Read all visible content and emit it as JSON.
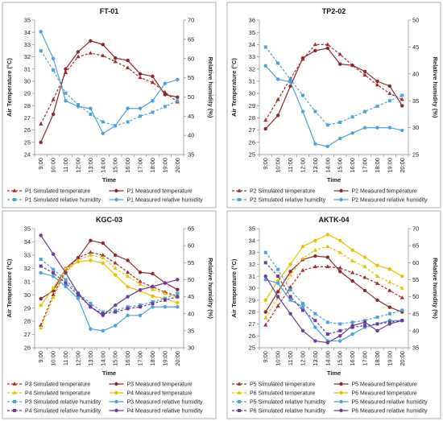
{
  "chart_data": [
    {
      "type": "line",
      "title": "FT-01",
      "x": [
        "9:00",
        "10:00",
        "11:00",
        "12:00",
        "13:00",
        "14:00",
        "15:00",
        "16:00",
        "17:00",
        "18:00",
        "19:00",
        "20:00"
      ],
      "xlabel": "Time",
      "ylabel": "Air Temperature (°C)",
      "y2label": "Relative humidity (%)",
      "ylim": [
        24,
        35
      ],
      "y2lim": [
        35,
        70
      ],
      "yticks": [
        24,
        25,
        26,
        27,
        28,
        29,
        30,
        31,
        32,
        33,
        34,
        35
      ],
      "y2ticks": [
        35,
        40,
        45,
        50,
        55,
        60,
        65,
        70
      ],
      "series": [
        {
          "name": "P1 Simulated temperature",
          "axis": "left",
          "color": "#A52A2A",
          "dash": true,
          "marker": "triangle",
          "values": [
            26.5,
            28.5,
            30.7,
            32.0,
            32.3,
            32.1,
            31.6,
            31.1,
            30.3,
            29.9,
            29.1,
            28.3
          ]
        },
        {
          "name": "P1 Measured temperature",
          "axis": "left",
          "color": "#8B2A2A",
          "dash": false,
          "marker": "circle",
          "values": [
            25.0,
            27.3,
            31.0,
            32.4,
            33.3,
            33.0,
            31.9,
            31.7,
            30.6,
            30.4,
            28.9,
            28.7
          ]
        },
        {
          "name": "P1 Simulated relative humidity",
          "axis": "right",
          "color": "#4BA3D9",
          "dash": true,
          "marker": "square",
          "values": [
            62,
            57,
            51,
            48,
            45.5,
            43.5,
            42.5,
            43.5,
            45,
            46,
            47.5,
            49
          ]
        },
        {
          "name": "P1 Measured relative humidity",
          "axis": "right",
          "color": "#4BA3D9",
          "dash": false,
          "marker": "circle",
          "values": [
            67,
            60,
            49,
            47.5,
            47,
            40.5,
            42.5,
            47,
            47,
            49,
            53.5,
            54.5
          ]
        }
      ],
      "legend_position": "bottom"
    },
    {
      "type": "line",
      "title": "TP2-02",
      "x": [
        "9:00",
        "10:00",
        "11:00",
        "12:00",
        "13:00",
        "14:00",
        "15:00",
        "16:00",
        "17:00",
        "18:00",
        "19:00",
        "20:00"
      ],
      "xlabel": "Time",
      "ylabel": "Air Temperature (°C)",
      "y2label": "Relative humidity (%)",
      "ylim": [
        25,
        36
      ],
      "y2lim": [
        25,
        50
      ],
      "yticks": [
        25,
        26,
        27,
        28,
        29,
        30,
        31,
        32,
        33,
        34,
        35,
        36
      ],
      "y2ticks": [
        25,
        30,
        35,
        40,
        45,
        50
      ],
      "series": [
        {
          "name": "P2 Simulated temperature",
          "axis": "left",
          "color": "#A52A2A",
          "dash": true,
          "marker": "triangle",
          "values": [
            27.8,
            29.5,
            31.2,
            32.8,
            34.0,
            34.0,
            33.2,
            32.3,
            31.5,
            30.7,
            30.0,
            29.5
          ]
        },
        {
          "name": "P2 Measured temperature",
          "axis": "left",
          "color": "#8B2A2A",
          "dash": false,
          "marker": "circle",
          "values": [
            27.1,
            28.2,
            30.6,
            32.9,
            33.5,
            33.7,
            32.4,
            32.3,
            31.8,
            31.0,
            30.6,
            29.0
          ]
        },
        {
          "name": "P2 Simulated relative humidity",
          "axis": "right",
          "color": "#4BA3D9",
          "dash": true,
          "marker": "square",
          "values": [
            45,
            42,
            39,
            36,
            33,
            30.5,
            31,
            32,
            33,
            34,
            35,
            36
          ]
        },
        {
          "name": "P2 Measured relative humidity",
          "axis": "right",
          "color": "#4BA3D9",
          "dash": false,
          "marker": "circle",
          "values": [
            41.5,
            39,
            38.5,
            33,
            27,
            26.5,
            28,
            29,
            30,
            30,
            30,
            29.5
          ]
        }
      ],
      "legend_position": "bottom"
    },
    {
      "type": "line",
      "title": "KGC-03",
      "x": [
        "9:00",
        "10:00",
        "11:00",
        "12:00",
        "13:00",
        "14:00",
        "15:00",
        "16:00",
        "17:00",
        "18:00",
        "19:00",
        "20:00"
      ],
      "xlabel": "Time",
      "ylabel": "Air Temperature (°C)",
      "y2label": "Relative humidity (%)",
      "ylim": [
        26,
        35
      ],
      "y2lim": [
        30,
        65
      ],
      "yticks": [
        26,
        27,
        28,
        29,
        30,
        31,
        32,
        33,
        34,
        35
      ],
      "y2ticks": [
        30,
        35,
        40,
        45,
        50,
        55,
        60,
        65
      ],
      "series": [
        {
          "name": "P3 Simulated temperature",
          "axis": "left",
          "color": "#A52A2A",
          "dash": true,
          "marker": "triangle",
          "values": [
            27.7,
            30.0,
            31.8,
            32.8,
            33.2,
            33.0,
            32.4,
            31.7,
            31.0,
            30.6,
            30.2,
            29.9
          ]
        },
        {
          "name": "P3 Measured temperature",
          "axis": "left",
          "color": "#8B2A2A",
          "dash": false,
          "marker": "circle",
          "values": [
            29.7,
            30.3,
            32.0,
            32.8,
            34.1,
            33.9,
            33.0,
            32.6,
            31.7,
            31.6,
            30.9,
            30.4
          ]
        },
        {
          "name": "P4 Simulated temperature",
          "axis": "left",
          "color": "#E8C100",
          "dash": true,
          "marker": "triangle",
          "values": [
            27.5,
            29.8,
            31.7,
            32.6,
            33.0,
            32.8,
            32.0,
            31.4,
            30.8,
            30.4,
            30.1,
            29.8
          ]
        },
        {
          "name": "P4 Measured temperature",
          "axis": "left",
          "color": "#E8C100",
          "dash": false,
          "marker": "circle",
          "values": [
            29.2,
            30.5,
            32.0,
            32.5,
            32.6,
            32.4,
            31.5,
            30.6,
            30.3,
            29.9,
            29.7,
            29.4
          ]
        },
        {
          "name": "P3 Simulated relative humidity",
          "axis": "right",
          "color": "#4BA3D9",
          "dash": true,
          "marker": "square",
          "values": [
            56,
            53,
            50,
            46,
            43,
            40.5,
            41,
            42,
            42.5,
            43.5,
            44.5,
            46
          ]
        },
        {
          "name": "P3 Measured relative humidity",
          "axis": "right",
          "color": "#4BA3D9",
          "dash": false,
          "marker": "circle",
          "values": [
            52,
            51,
            48,
            44.5,
            35.5,
            35,
            36.5,
            39.5,
            39.5,
            42,
            42,
            42
          ]
        },
        {
          "name": "P4 Simulated relative humidity",
          "axis": "right",
          "color": "#6A3D9A",
          "dash": true,
          "marker": "square",
          "values": [
            54,
            52,
            49,
            45.5,
            42,
            40,
            40.5,
            41.5,
            42,
            43,
            44,
            45
          ]
        },
        {
          "name": "P4 Measured relative humidity",
          "axis": "right",
          "color": "#6A3D9A",
          "dash": false,
          "marker": "circle",
          "values": [
            63,
            57.5,
            52,
            46,
            42,
            39.5,
            42.5,
            45,
            47,
            48,
            49,
            50
          ]
        }
      ],
      "legend_position": "bottom"
    },
    {
      "type": "line",
      "title": "AKTK-04",
      "x": [
        "9:00",
        "10:00",
        "11:00",
        "12:00",
        "13:00",
        "14:00",
        "15:00",
        "16:00",
        "17:00",
        "18:00",
        "19:00",
        "20:00"
      ],
      "xlabel": "Time",
      "ylabel": "Air Temperature (°C)",
      "y2label": "Relative humidity (%)",
      "ylim": [
        25,
        35
      ],
      "y2lim": [
        35,
        70
      ],
      "yticks": [
        25,
        26,
        27,
        28,
        29,
        30,
        31,
        32,
        33,
        34,
        35
      ],
      "y2ticks": [
        35,
        40,
        45,
        50,
        55,
        60,
        65,
        70
      ],
      "series": [
        {
          "name": "P5 Simulated temperature",
          "axis": "left",
          "color": "#A52A2A",
          "dash": true,
          "marker": "triangle",
          "values": [
            26.9,
            28.5,
            30.1,
            31.5,
            31.8,
            31.8,
            31.7,
            31.3,
            30.9,
            30.4,
            29.8,
            29.2
          ]
        },
        {
          "name": "P5 Measured temperature",
          "axis": "left",
          "color": "#8B2A2A",
          "dash": false,
          "marker": "circle",
          "values": [
            28.0,
            29.7,
            31.4,
            32.4,
            32.7,
            32.6,
            31.4,
            30.6,
            29.8,
            29.0,
            28.4,
            28.0
          ]
        },
        {
          "name": "P6 Simulated temperature",
          "axis": "left",
          "color": "#E8C100",
          "dash": true,
          "marker": "triangle",
          "values": [
            27.5,
            29.2,
            31.1,
            32.5,
            33.2,
            33.5,
            33.0,
            32.3,
            31.8,
            31.0,
            30.5,
            30.0
          ]
        },
        {
          "name": "P6 Measured temperature",
          "axis": "left",
          "color": "#E8C100",
          "dash": false,
          "marker": "circle",
          "values": [
            29.0,
            30.6,
            32.0,
            33.5,
            34.0,
            34.5,
            34.0,
            33.2,
            32.6,
            31.9,
            31.6,
            31.0
          ]
        },
        {
          "name": "P5 Simulated relative humidity",
          "axis": "right",
          "color": "#4BA3D9",
          "dash": true,
          "marker": "square",
          "values": [
            63,
            58,
            52,
            48,
            45,
            42.5,
            42,
            42.5,
            43,
            44,
            45,
            46
          ]
        },
        {
          "name": "P5 Measured relative humidity",
          "axis": "right",
          "color": "#4BA3D9",
          "dash": false,
          "marker": "circle",
          "values": [
            55,
            54,
            49,
            47,
            41,
            37,
            37,
            39,
            41,
            42,
            43,
            43
          ]
        },
        {
          "name": "P6 Simulated relative humidity",
          "axis": "right",
          "color": "#6A3D9A",
          "dash": true,
          "marker": "square",
          "values": [
            60,
            56,
            50,
            46,
            43,
            39,
            40,
            41,
            41.5,
            42,
            42.5,
            43
          ]
        },
        {
          "name": "P6 Measured relative humidity",
          "axis": "right",
          "color": "#6A3D9A",
          "dash": false,
          "marker": "circle",
          "values": [
            56,
            50,
            45,
            40,
            37,
            36.5,
            38.5,
            41.5,
            42.5,
            40,
            42,
            43
          ]
        }
      ],
      "legend_position": "bottom"
    }
  ]
}
